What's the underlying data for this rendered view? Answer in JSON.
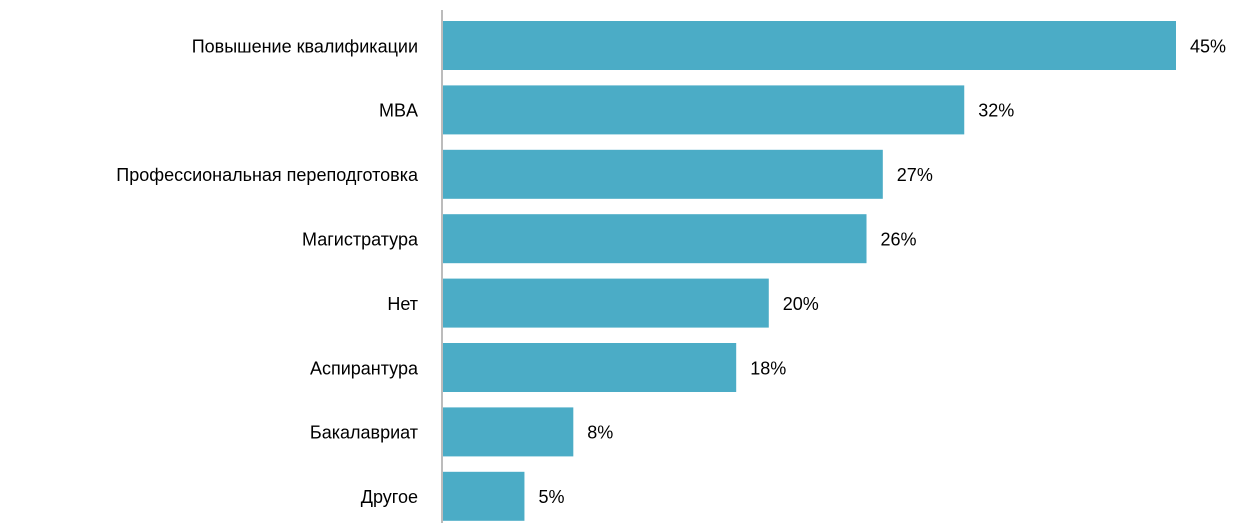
{
  "chart_data": {
    "type": "bar",
    "orientation": "horizontal",
    "categories": [
      "Повышение квалификации",
      "MBA",
      "Профессиональная переподготовка",
      "Магистратура",
      "Нет",
      "Аспирантура",
      "Бакалавриат",
      "Другое"
    ],
    "values": [
      45,
      32,
      27,
      26,
      20,
      18,
      8,
      5
    ],
    "value_labels": [
      "45%",
      "32%",
      "27%",
      "26%",
      "20%",
      "18%",
      "8%",
      "5%"
    ],
    "color": "#4bacc6"
  }
}
